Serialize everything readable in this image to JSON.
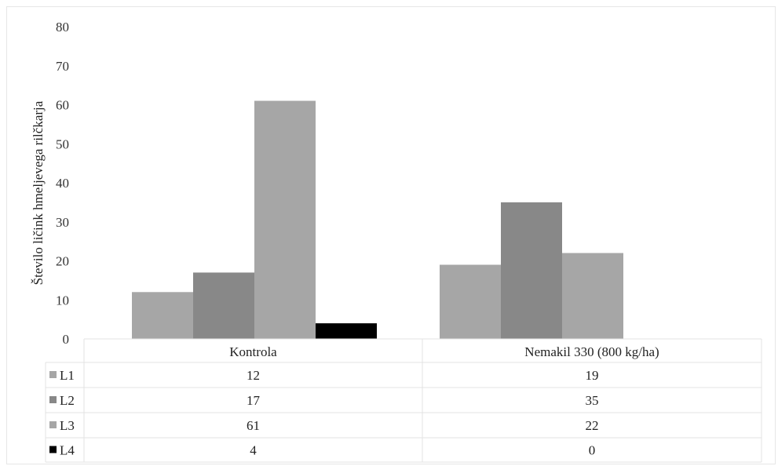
{
  "chart_data": {
    "type": "bar",
    "title": "",
    "xlabel": "",
    "ylabel": "Število ličink hmeljevega rilčkarja",
    "ylim": [
      0,
      80
    ],
    "yticks": [
      0,
      10,
      20,
      30,
      40,
      50,
      60,
      70,
      80
    ],
    "grid": false,
    "legend": "data-table",
    "categories": [
      "Kontrola",
      "Nemakil 330 (800 kg/ha)"
    ],
    "series": [
      {
        "name": "L1",
        "values": [
          12,
          19
        ],
        "color": "#a6a6a6"
      },
      {
        "name": "L2",
        "values": [
          17,
          35
        ],
        "color": "#888888"
      },
      {
        "name": "L3",
        "values": [
          61,
          22
        ],
        "color": "#a6a6a6"
      },
      {
        "name": "L4",
        "values": [
          4,
          0
        ],
        "color": "#000000"
      }
    ]
  }
}
